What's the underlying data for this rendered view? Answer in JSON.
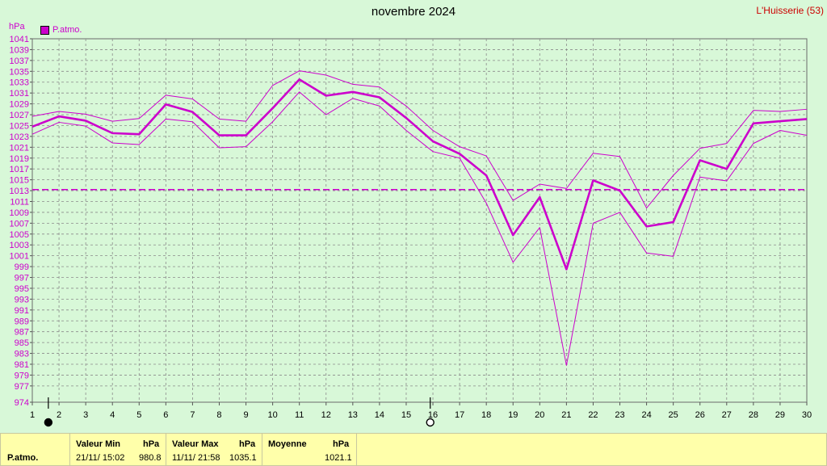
{
  "title": "novembre 2024",
  "station": "L'Huisserie (53)",
  "unit_label": "hPa",
  "legend_label": "P.atmo.",
  "colors": {
    "series": "#cc00cc",
    "background": "#d8f8d8",
    "grid": "#8a8a8a",
    "stats_bg": "#ffffaa"
  },
  "stats": {
    "series_name": "P.atmo.",
    "min_header": "Valeur Min",
    "min_unit": "hPa",
    "min_date": "21/11/  15:02",
    "min_value": "980.8",
    "max_header": "Valeur Max",
    "max_unit": "hPa",
    "max_date": "11/11/  21:58",
    "max_value": "1035.1",
    "mean_header": "Moyenne",
    "mean_unit": "hPa",
    "mean_value": "1021.1"
  },
  "chart_data": {
    "type": "line",
    "x": [
      1,
      2,
      3,
      4,
      5,
      6,
      7,
      8,
      9,
      10,
      11,
      12,
      13,
      14,
      15,
      16,
      17,
      18,
      19,
      20,
      21,
      22,
      23,
      24,
      25,
      26,
      27,
      28,
      29,
      30
    ],
    "ylim": [
      974,
      1041
    ],
    "xlim": [
      1,
      30
    ],
    "y_ticks": [
      974,
      977,
      979,
      981,
      983,
      985,
      987,
      989,
      991,
      993,
      995,
      997,
      999,
      1001,
      1003,
      1005,
      1007,
      1009,
      1011,
      1013,
      1015,
      1017,
      1019,
      1021,
      1023,
      1025,
      1027,
      1029,
      1031,
      1033,
      1035,
      1037,
      1039,
      1041
    ],
    "x_ticks": [
      1,
      2,
      3,
      4,
      5,
      6,
      7,
      8,
      9,
      10,
      11,
      12,
      13,
      14,
      15,
      16,
      17,
      18,
      19,
      20,
      21,
      22,
      23,
      24,
      25,
      26,
      27,
      28,
      29,
      30
    ],
    "grid": true,
    "legend": "top-left",
    "mean_line": 1013.2,
    "markers": [
      {
        "x": 1.6,
        "shape": "filled-circle"
      },
      {
        "x": 15.9,
        "shape": "open-circle"
      }
    ],
    "series": [
      {
        "name": "P.atmo.",
        "role": "mean",
        "values": [
          1024.8,
          1026.7,
          1025.9,
          1023.6,
          1023.4,
          1028.9,
          1027.5,
          1023.2,
          1023.2,
          1028.2,
          1033.5,
          1030.5,
          1031.2,
          1030.2,
          1026.4,
          1022.1,
          1019.8,
          1015.8,
          1004.8,
          1011.8,
          998.5,
          1014.9,
          1013.0,
          1006.4,
          1007.2,
          1018.6,
          1017.0,
          1025.4,
          1025.8,
          1026.2
        ]
      },
      {
        "role": "max",
        "values": [
          1026.7,
          1027.6,
          1027.1,
          1025.8,
          1026.3,
          1030.6,
          1029.9,
          1026.2,
          1025.8,
          1032.4,
          1035.1,
          1034.3,
          1032.6,
          1032.1,
          1028.6,
          1024.1,
          1021.1,
          1019.4,
          1011.2,
          1014.2,
          1013.4,
          1019.9,
          1019.3,
          1009.8,
          1015.8,
          1020.8,
          1021.7,
          1027.8,
          1027.6,
          1028.0
        ]
      },
      {
        "role": "min",
        "values": [
          1023.4,
          1025.6,
          1024.9,
          1021.8,
          1021.5,
          1026.2,
          1025.7,
          1020.9,
          1021.1,
          1025.7,
          1031.2,
          1027.0,
          1030.0,
          1028.6,
          1024.1,
          1020.2,
          1019.0,
          1010.7,
          999.8,
          1006.2,
          980.8,
          1007.0,
          1009.0,
          1001.5,
          1000.9,
          1015.5,
          1014.8,
          1021.7,
          1024.1,
          1023.2
        ]
      }
    ]
  }
}
